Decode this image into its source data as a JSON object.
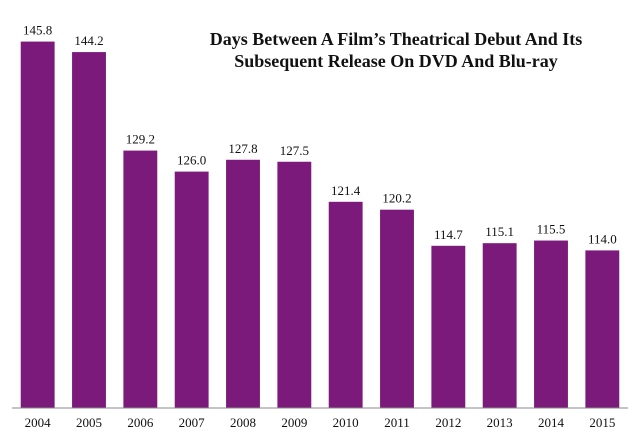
{
  "chart_data": {
    "type": "bar",
    "title_lines": [
      "Days Between A Film’s Theatrical Debut And Its",
      "Subsequent Release On DVD And Blu-ray"
    ],
    "categories": [
      "2004",
      "2005",
      "2006",
      "2007",
      "2008",
      "2009",
      "2010",
      "2011",
      "2012",
      "2013",
      "2014",
      "2015"
    ],
    "values": [
      145.8,
      144.2,
      129.2,
      126.0,
      127.8,
      127.5,
      121.4,
      120.2,
      114.7,
      115.1,
      115.5,
      114.0
    ],
    "data_labels": [
      "145.8",
      "144.2",
      "129.2",
      "126.0",
      "127.8",
      "127.5",
      "121.4",
      "120.2",
      "114.7",
      "115.1",
      "115.5",
      "114.0"
    ],
    "xlabel": "",
    "ylabel": "",
    "ylim": [
      90,
      150
    ],
    "grid": false,
    "legend": "none",
    "bar_color": "#7b1a7b",
    "axis_color": "#888888"
  }
}
